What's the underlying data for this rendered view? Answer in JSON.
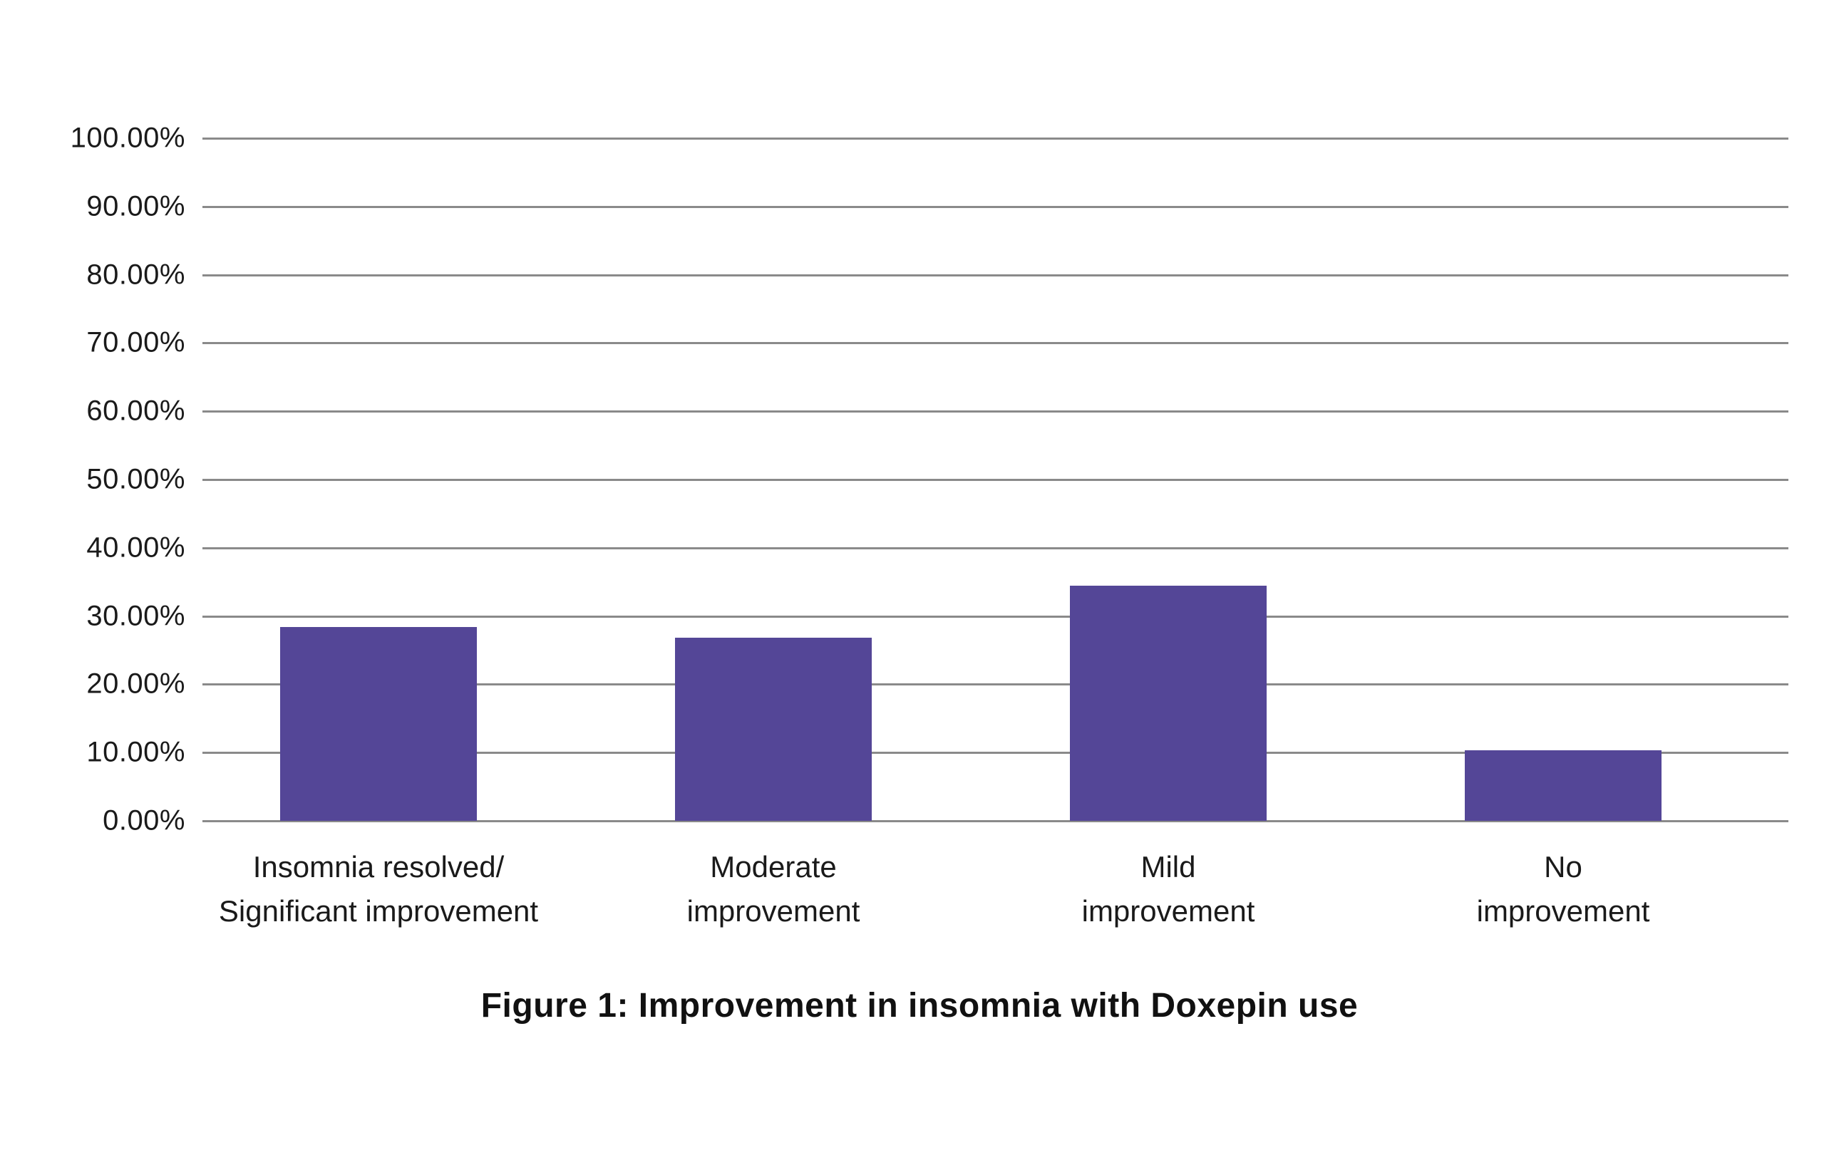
{
  "figure": {
    "caption": "Figure 1: Improvement in insomnia with Doxepin use"
  },
  "chart_data": {
    "type": "bar",
    "title": "Figure 1: Improvement in insomnia with Doxepin use",
    "categories": [
      "Insomnia resolved/\nSignificant improvement",
      "Moderate\nimprovement",
      "Mild\nimprovement",
      "No\nimprovement"
    ],
    "values": [
      28.4,
      26.8,
      34.5,
      10.3
    ],
    "unit": "%",
    "xlabel": "",
    "ylabel": "",
    "ylim": [
      0,
      100
    ],
    "ytick_step": 10,
    "ytick_labels": [
      "100.00%",
      "90.00%",
      "80.00%",
      "70.00%",
      "60.00%",
      "50.00%",
      "40.00%",
      "30.00%",
      "20.00%",
      "10.00%",
      "0.00%"
    ],
    "grid": true,
    "legend": false,
    "bar_color": "#544697",
    "gridline_color": "#8a8a8a",
    "text_color": "#1a1a1a",
    "background": "#ffffff"
  }
}
